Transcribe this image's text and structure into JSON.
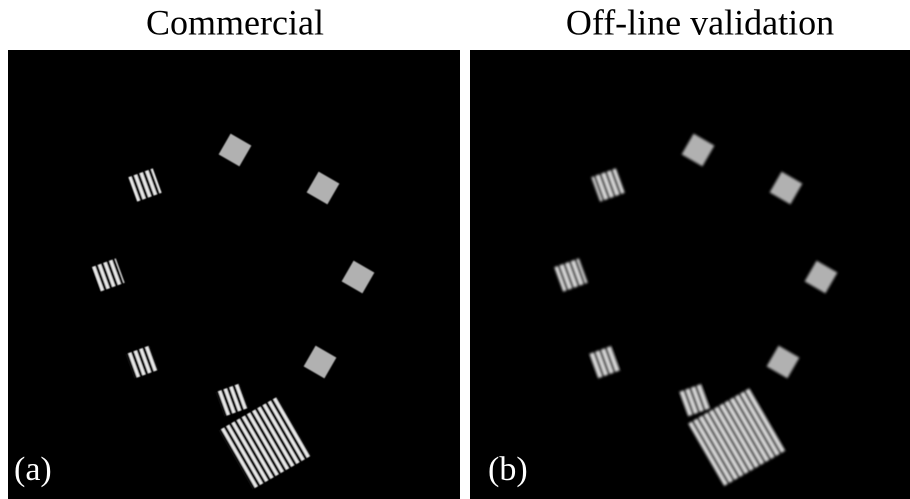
{
  "panels": [
    {
      "title": "Commercial",
      "label": "(a)"
    },
    {
      "title": "Off-line validation",
      "label": "(b)"
    }
  ]
}
